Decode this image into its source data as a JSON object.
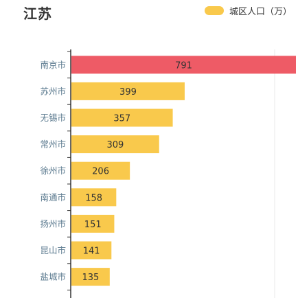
{
  "title": "江苏",
  "legend": {
    "label": "城区人口（万）"
  },
  "colors": {
    "bar": "#f9c94c",
    "highlight": "#ee5b66",
    "axis": "#333333",
    "grid": "#e8e8e8"
  },
  "chart_data": {
    "type": "bar",
    "orientation": "horizontal",
    "title": "江苏",
    "xlabel": "",
    "ylabel": "",
    "categories": [
      "南京市",
      "苏州市",
      "无锡市",
      "常州市",
      "徐州市",
      "南通市",
      "扬州市",
      "昆山市",
      "盐城市"
    ],
    "series": [
      {
        "name": "城区人口（万）",
        "values": [
          791,
          399,
          357,
          309,
          206,
          158,
          151,
          141,
          135
        ]
      }
    ],
    "xlim": [
      0,
      791
    ],
    "grid": true,
    "legend_position": "top-right"
  }
}
